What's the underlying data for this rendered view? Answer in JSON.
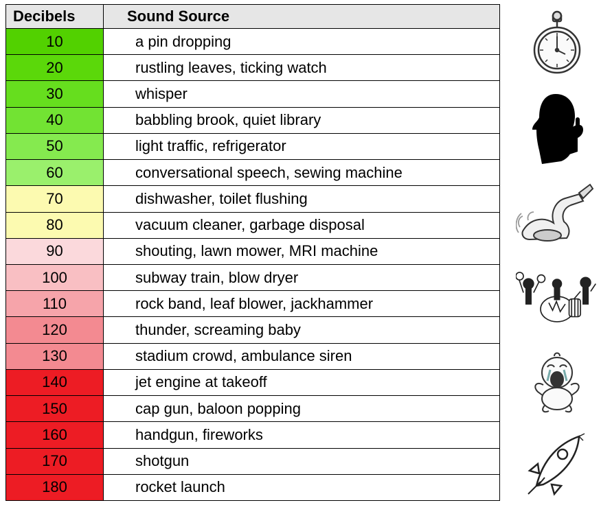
{
  "header": {
    "decibels": "Decibels",
    "source": "Sound Source"
  },
  "header_bg": "#e6e6e6",
  "border_color": "#000000",
  "font_family": "Segoe UI, Helvetica Neue, Arial, sans-serif",
  "header_fontsize": 22,
  "cell_fontsize": 22,
  "rows": [
    {
      "db": "10",
      "source": "a pin dropping",
      "color": "#52d100"
    },
    {
      "db": "20",
      "source": "rustling leaves, ticking watch",
      "color": "#5bd80a"
    },
    {
      "db": "30",
      "source": "whisper",
      "color": "#66de1e"
    },
    {
      "db": "40",
      "source": "babbling brook, quiet library",
      "color": "#72e333"
    },
    {
      "db": "50",
      "source": "light traffic, refrigerator",
      "color": "#85ea4f"
    },
    {
      "db": "60",
      "source": "conversational speech, sewing machine",
      "color": "#9af06c"
    },
    {
      "db": "70",
      "source": "dishwasher, toilet flushing",
      "color": "#fcfab0"
    },
    {
      "db": "80",
      "source": "vacuum cleaner, garbage disposal",
      "color": "#fcfab0"
    },
    {
      "db": "90",
      "source": "shouting, lawn mower, MRI machine",
      "color": "#fbd9dc"
    },
    {
      "db": "100",
      "source": "subway train, blow dryer",
      "color": "#f9bfc3"
    },
    {
      "db": "110",
      "source": "rock band, leaf blower, jackhammer",
      "color": "#f6a4aa"
    },
    {
      "db": "120",
      "source": "thunder, screaming baby",
      "color": "#f38a91"
    },
    {
      "db": "130",
      "source": "stadium crowd, ambulance siren",
      "color": "#f38a91"
    },
    {
      "db": "140",
      "source": "jet engine at takeoff",
      "color": "#ed1c24"
    },
    {
      "db": "150",
      "source": "cap gun, baloon popping",
      "color": "#ed1c24"
    },
    {
      "db": "160",
      "source": "handgun, fireworks",
      "color": "#ed1c24"
    },
    {
      "db": "170",
      "source": "shotgun",
      "color": "#ed1c24"
    },
    {
      "db": "180",
      "source": "rocket launch",
      "color": "#ed1c24"
    }
  ],
  "icons": [
    {
      "name": "stopwatch-icon"
    },
    {
      "name": "shush-silhouette-icon"
    },
    {
      "name": "vacuum-icon"
    },
    {
      "name": "band-icon"
    },
    {
      "name": "crying-baby-icon"
    },
    {
      "name": "rocket-icon"
    }
  ]
}
